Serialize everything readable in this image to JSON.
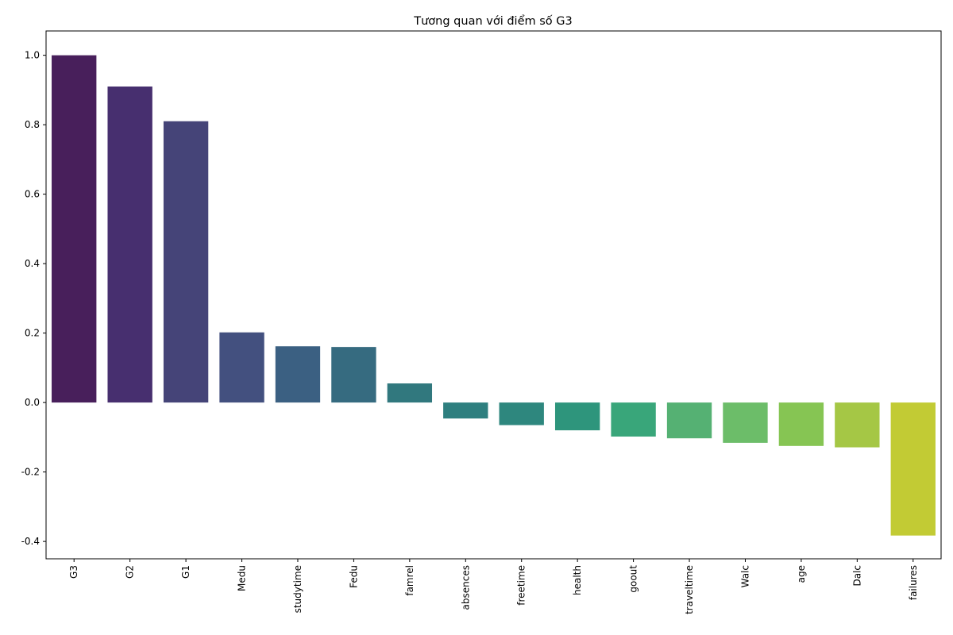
{
  "chart_data": {
    "type": "bar",
    "title": "Tương quan với điểm số G3",
    "xlabel": "",
    "ylabel": "",
    "categories": [
      "G3",
      "G2",
      "G1",
      "Medu",
      "studytime",
      "Fedu",
      "famrel",
      "absences",
      "freetime",
      "health",
      "goout",
      "traveltime",
      "Walc",
      "age",
      "Dalc",
      "failures"
    ],
    "values": [
      1.0,
      0.91,
      0.81,
      0.202,
      0.162,
      0.16,
      0.055,
      -0.046,
      -0.065,
      -0.08,
      -0.098,
      -0.103,
      -0.116,
      -0.125,
      -0.129,
      -0.383
    ],
    "colors": [
      "#481f5b",
      "#472f6f",
      "#454478",
      "#43507f",
      "#3b6082",
      "#366b80",
      "#31787e",
      "#2e7f7f",
      "#2e877e",
      "#2e957c",
      "#39a67a",
      "#55b173",
      "#6cbd69",
      "#86c553",
      "#a5c745",
      "#c2cb34"
    ],
    "ylim": [
      -0.45,
      1.07
    ],
    "yticks": [
      "-0.4",
      "-0.2",
      "0.0",
      "0.2",
      "0.4",
      "0.6",
      "0.8",
      "1.0"
    ],
    "grid": false,
    "legend": "none"
  }
}
